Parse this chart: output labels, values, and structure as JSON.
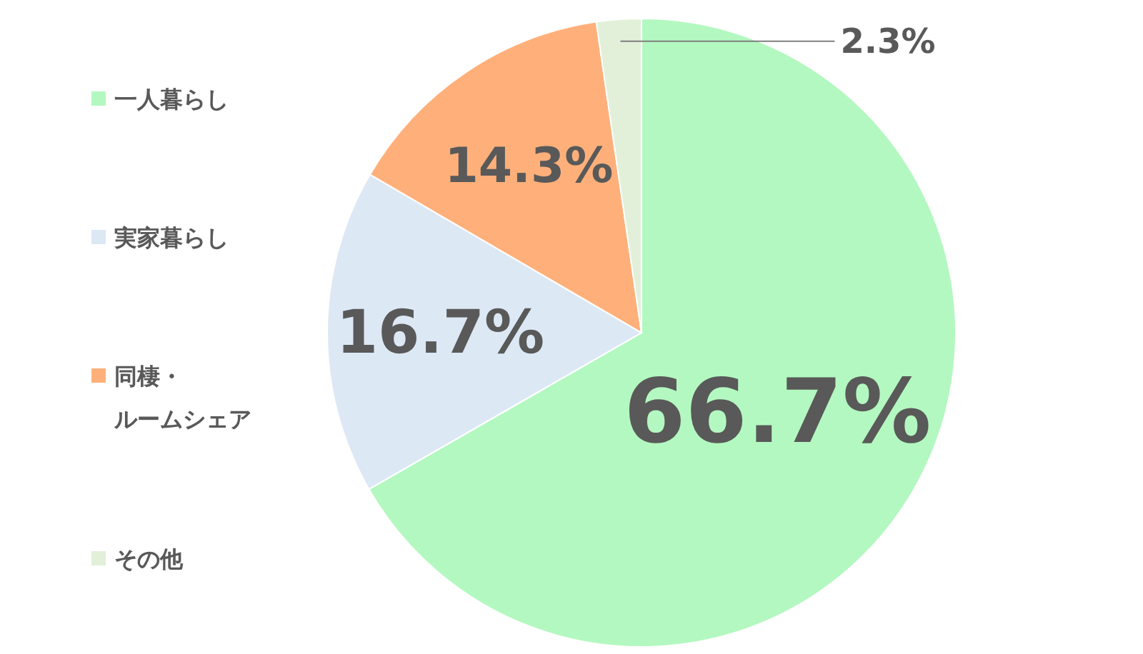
{
  "chart_data": {
    "type": "pie",
    "categories": [
      "一人暮らし",
      "実家暮らし",
      "同棲・ルームシェア",
      "その他"
    ],
    "values": [
      66.7,
      16.7,
      14.3,
      2.3
    ],
    "colors": [
      "#b3f8c0",
      "#dde8f5",
      "#ffb07a",
      "#e2f0d9"
    ],
    "value_labels": [
      "66.7%",
      "16.7%",
      "14.3%",
      "2.3%"
    ],
    "legend": "left"
  }
}
